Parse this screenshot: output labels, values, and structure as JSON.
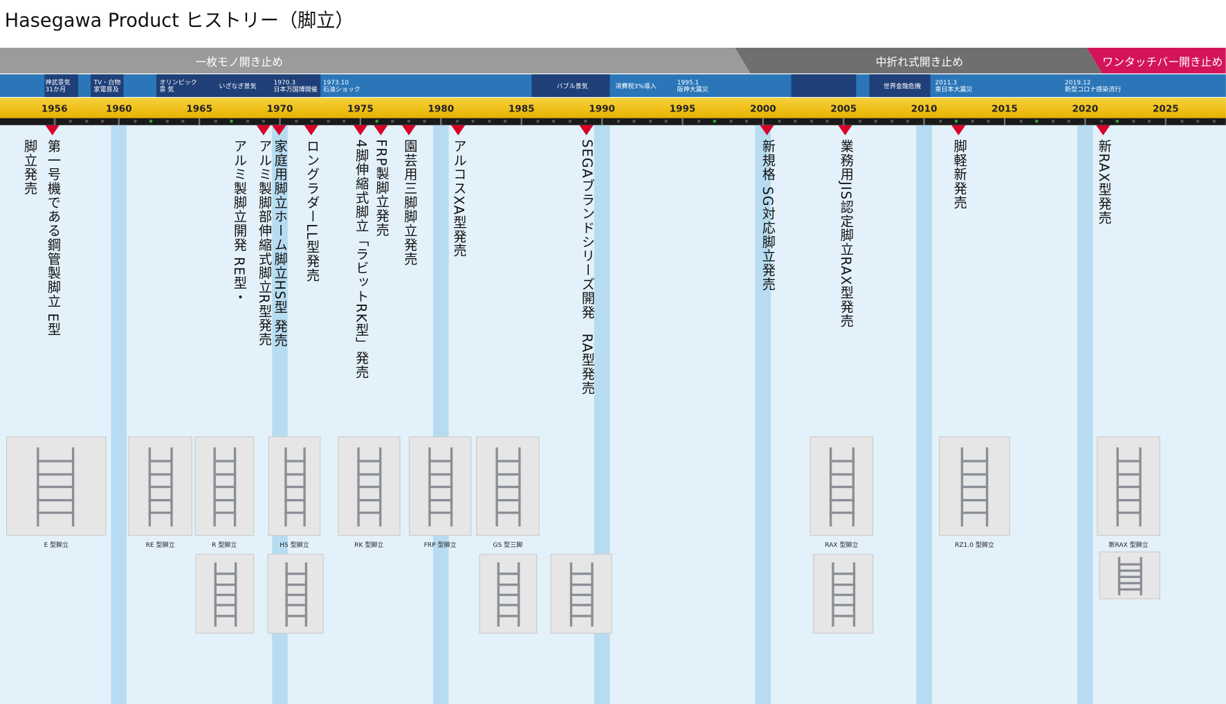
{
  "header": {
    "title": "Hasegawa Product ヒストリー（脚立）"
  },
  "phases": [
    "一枚モノ開き止め",
    "中折れ式開き止め",
    "ワンタッチバー開き止め"
  ],
  "economy": [
    [
      "神武景気",
      "31か月"
    ],
    [
      "TV・白物",
      "家電普及"
    ],
    [
      "オリンピック",
      "景 気"
    ],
    [
      "いざなぎ景気"
    ],
    [
      "1970.3",
      "日本万国博開催"
    ],
    [
      "1973.10",
      "石油ショック"
    ],
    [
      "バブル景気"
    ],
    [
      "消費税3%導入"
    ],
    [
      "1995.1",
      "阪神大震災"
    ],
    [
      "世界金融危機"
    ],
    [
      "2011.3",
      "東日本大震災"
    ],
    [
      "2019.12",
      "新型コロナ感染流行"
    ]
  ],
  "years": [
    1956,
    1960,
    1965,
    1970,
    1975,
    1980,
    1985,
    1990,
    1995,
    2000,
    2005,
    2010,
    2015,
    2020,
    2025
  ],
  "events": [
    [
      "第一号機である鋼管製脚立 E型",
      "脚立発売"
    ],
    [
      "アルミ製脚部伸縮式脚立R型発売",
      "アルミ製脚立開発 RE型・"
    ],
    [
      "家庭用脚立ホーム脚立HS型 発売"
    ],
    [
      "ロングラダーLL型発売"
    ],
    [
      "4脚伸縮式脚立「ラビットRK型」発売"
    ],
    [
      "FRP製脚立発売"
    ],
    [
      "園芸用三脚脚立発売"
    ],
    [
      "アルコスXA型発売"
    ],
    [
      "SEGAブランドシリーズ開発　RA型発売"
    ],
    [
      "新規格 SG対応脚立発売"
    ],
    [
      "業務用JIS認定脚立RAX型発売"
    ],
    [
      "脚軽新発売"
    ],
    [
      "新RAX型発売"
    ]
  ],
  "products": [
    "E 型脚立",
    "RE 型脚立",
    "R 型脚立",
    "HS 型脚立",
    "RK 型脚立",
    "FRP 型脚立",
    "GS 型三脚",
    "RAX 型脚立",
    "RZ1.0 型脚立",
    "新RAX 型脚立"
  ]
}
